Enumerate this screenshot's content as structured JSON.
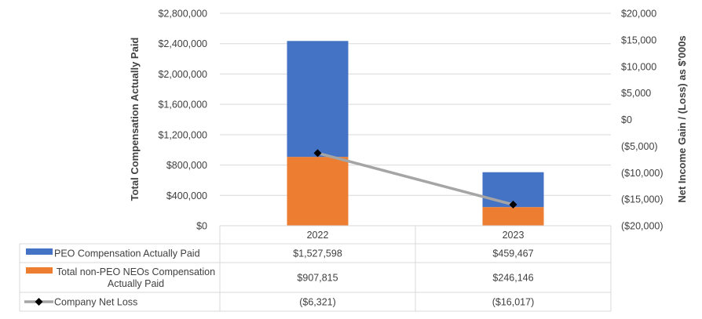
{
  "chart_data": {
    "type": "bar",
    "stacked": true,
    "categories": [
      "2022",
      "2023"
    ],
    "ylabel": "Total Compensation Actually Paid",
    "y2label": "Net Income Gain / (Loss) as $'000s",
    "ylim": [
      0,
      2800000
    ],
    "y2lim": [
      -20000,
      20000
    ],
    "y_ticks": [
      "$0",
      "$400,000",
      "$800,000",
      "$1,200,000",
      "$1,600,000",
      "$2,000,000",
      "$2,400,000",
      "$2,800,000"
    ],
    "y2_ticks": [
      "($20,000)",
      "($15,000)",
      "($10,000)",
      "($5,000)",
      "$0",
      "$5,000",
      "$10,000",
      "$15,000",
      "$20,000"
    ],
    "series": [
      {
        "name": "Total non-PEO NEOs Compensation Actually Paid",
        "type": "bar",
        "axis": "left",
        "color": "#ED7D31",
        "values": [
          907815,
          246146
        ],
        "labels": [
          "$907,815",
          "$246,146"
        ]
      },
      {
        "name": "PEO Compensation Actually Paid",
        "type": "bar",
        "axis": "left",
        "color": "#4472C4",
        "values": [
          1527598,
          459467
        ],
        "labels": [
          "$1,527,598",
          "$459,467"
        ]
      },
      {
        "name": "Company Net Loss",
        "type": "line",
        "axis": "right",
        "color": "#A5A5A5",
        "marker_color": "#000000",
        "values": [
          -6321,
          -16017
        ],
        "labels": [
          "($6,321)",
          "($16,017)"
        ]
      }
    ],
    "table_rows": [
      {
        "legend": "PEO Compensation Actually Paid",
        "series": 1,
        "lines": [
          "PEO Compensation Actually Paid"
        ]
      },
      {
        "legend": "Total non-PEO NEOs Compensation Actually Paid",
        "series": 0,
        "lines": [
          "Total non-PEO NEOs Compensation",
          "Actually Paid"
        ]
      },
      {
        "legend": "Company Net Loss",
        "series": 2,
        "lines": [
          "Company Net Loss"
        ]
      }
    ],
    "colors": {
      "grid": "#D9D9D9",
      "text": "#404040",
      "line": "#A5A5A5",
      "marker": "#000000"
    }
  }
}
